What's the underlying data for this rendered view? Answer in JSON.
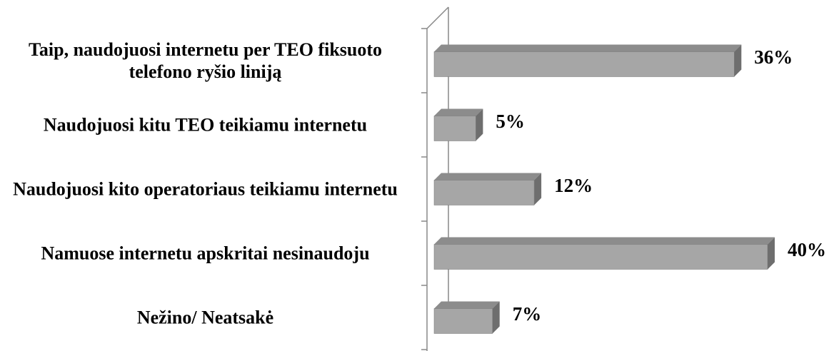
{
  "chart_data": {
    "type": "bar3d_horizontal",
    "categories": [
      "Taip, naudojuosi internetu per TEO fiksuoto telefono ryšio liniją",
      "Naudojuosi kitu TEO teikiamu internetu",
      "Naudojuosi kito operatoriaus teikiamu internetu",
      "Namuose internetu apskritai nesinaudoju",
      "Nežino/ Neatsakė"
    ],
    "values": [
      36,
      5,
      12,
      40,
      7
    ],
    "value_labels": [
      "36%",
      "5%",
      "12%",
      "40%",
      "7%"
    ],
    "color": "#a6a6a6",
    "xlim": [
      0,
      40
    ]
  }
}
